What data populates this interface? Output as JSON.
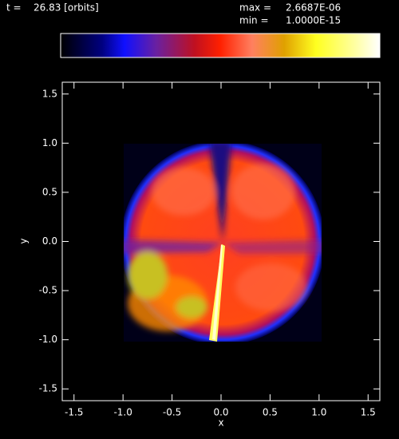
{
  "chart_data": {
    "type": "image",
    "time_label": "t =",
    "time_value": "26.83 [orbits]",
    "max_label": "max =",
    "max_value": "2.6687E-06",
    "min_label": "min =",
    "min_value": "1.0000E-15",
    "xlabel": "x",
    "ylabel": "y",
    "xlim": [
      -1.62,
      1.62
    ],
    "ylim": [
      -1.62,
      1.62
    ],
    "xticks": [
      -1.5,
      {
        "value": -1,
        "label": "-1.0"
      },
      -0.5,
      {
        "value": 0,
        "label": "0.0"
      },
      0.5,
      {
        "value": 1,
        "label": "1.0"
      },
      1.5
    ],
    "yticks": [
      -1.5,
      {
        "value": -1,
        "label": "-1.0"
      },
      -0.5,
      {
        "value": 0,
        "label": "0.0"
      },
      0.5,
      {
        "value": 1,
        "label": "1.0"
      },
      1.5
    ]
  }
}
